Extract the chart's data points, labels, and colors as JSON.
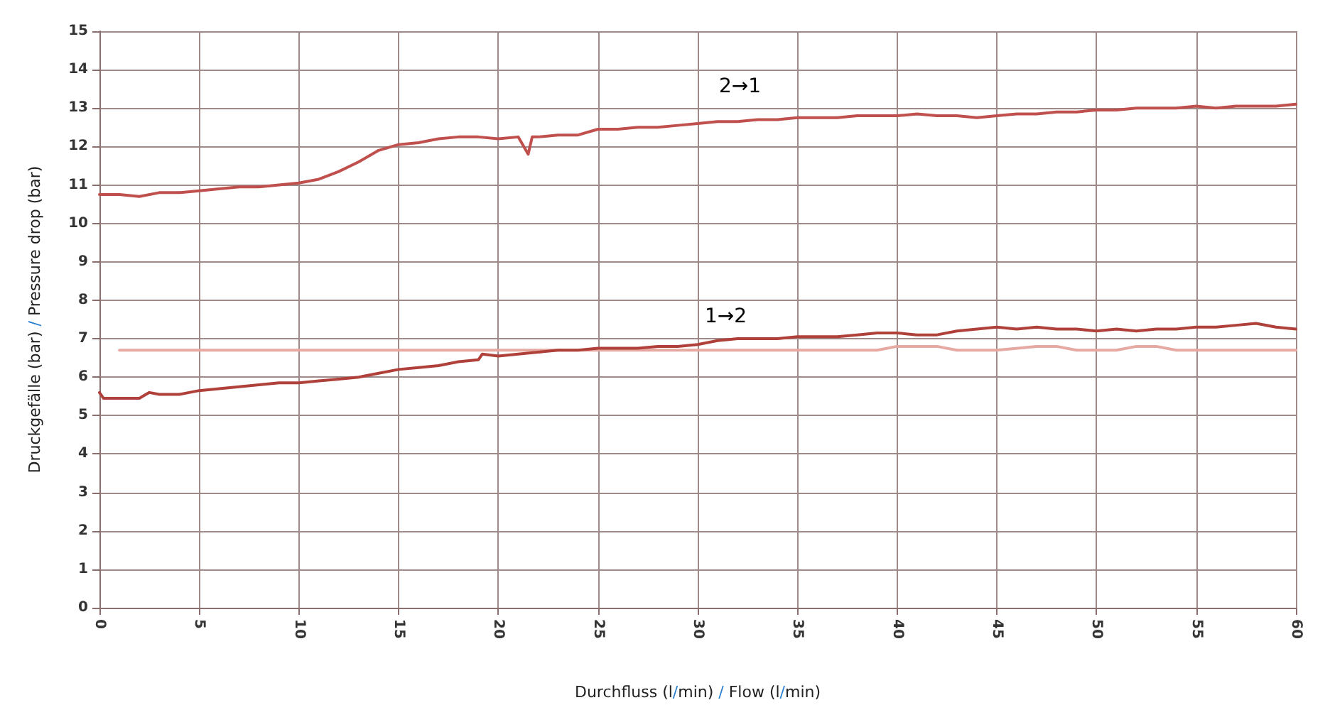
{
  "chart_data": {
    "type": "line",
    "xlabel": "Durchfluss (l/min) / Flow (l/min)",
    "ylabel": "Druckgefälle (bar) / Pressure drop (bar)",
    "xlim": [
      0,
      60
    ],
    "xticks": [
      0,
      5,
      10,
      15,
      20,
      25,
      30,
      35,
      40,
      45,
      50,
      55,
      60
    ],
    "ylim": [
      0,
      15
    ],
    "yticks": [
      0,
      1,
      2,
      3,
      4,
      5,
      6,
      7,
      8,
      9,
      10,
      11,
      12,
      13,
      14,
      15
    ],
    "grid": true,
    "marker": "none",
    "line_style": "solid",
    "annotations": [
      "2→1",
      "1→2"
    ],
    "series": [
      {
        "color": "#e6a9a2",
        "x": [
          1,
          10,
          20,
          30,
          39,
          40,
          42,
          43,
          45,
          47,
          48,
          49,
          51,
          52,
          53,
          54,
          60
        ],
        "values": [
          6.7,
          6.7,
          6.7,
          6.7,
          6.7,
          6.8,
          6.8,
          6.7,
          6.7,
          6.8,
          6.8,
          6.7,
          6.7,
          6.8,
          6.8,
          6.7,
          6.7
        ]
      },
      {
        "color": "#c0504d",
        "x": [
          0,
          1,
          2,
          3,
          4,
          5,
          6,
          7,
          8,
          9,
          10,
          11,
          12,
          13,
          14,
          15,
          16,
          17,
          18,
          19,
          20,
          21,
          21.5,
          21.7,
          22,
          23,
          24,
          25,
          26,
          27,
          28,
          29,
          30,
          31,
          32,
          33,
          34,
          35,
          36,
          37,
          38,
          39,
          40,
          41,
          42,
          43,
          44,
          45,
          46,
          47,
          48,
          49,
          50,
          51,
          52,
          53,
          54,
          55,
          56,
          57,
          58,
          59,
          60
        ],
        "values": [
          10.75,
          10.75,
          10.7,
          10.8,
          10.8,
          10.85,
          10.9,
          10.95,
          10.95,
          11.0,
          11.05,
          11.15,
          11.35,
          11.6,
          11.9,
          12.05,
          12.1,
          12.2,
          12.25,
          12.25,
          12.2,
          12.25,
          11.8,
          12.25,
          12.25,
          12.3,
          12.3,
          12.45,
          12.45,
          12.5,
          12.5,
          12.55,
          12.6,
          12.65,
          12.65,
          12.7,
          12.7,
          12.75,
          12.75,
          12.75,
          12.8,
          12.8,
          12.8,
          12.85,
          12.8,
          12.8,
          12.75,
          12.8,
          12.85,
          12.85,
          12.9,
          12.9,
          12.95,
          12.95,
          13.0,
          13.0,
          13.0,
          13.05,
          13.0,
          13.05,
          13.05,
          13.05,
          13.1
        ]
      },
      {
        "color": "#b0403a",
        "x": [
          0,
          0.2,
          1,
          2,
          2.5,
          3,
          4,
          5,
          6,
          7,
          8,
          9,
          10,
          11,
          12,
          13,
          14,
          15,
          16,
          17,
          18,
          19,
          19.2,
          20,
          21,
          22,
          23,
          24,
          25,
          26,
          27,
          28,
          29,
          30,
          31,
          32,
          33,
          34,
          35,
          36,
          37,
          38,
          39,
          40,
          41,
          42,
          43,
          44,
          45,
          46,
          47,
          48,
          49,
          50,
          51,
          52,
          53,
          54,
          55,
          56,
          57,
          58,
          59,
          60
        ],
        "values": [
          5.6,
          5.45,
          5.45,
          5.45,
          5.6,
          5.55,
          5.55,
          5.65,
          5.7,
          5.75,
          5.8,
          5.85,
          5.85,
          5.9,
          5.95,
          6.0,
          6.1,
          6.2,
          6.25,
          6.3,
          6.4,
          6.45,
          6.6,
          6.55,
          6.6,
          6.65,
          6.7,
          6.7,
          6.75,
          6.75,
          6.75,
          6.8,
          6.8,
          6.85,
          6.95,
          7.0,
          7.0,
          7.0,
          7.05,
          7.05,
          7.05,
          7.1,
          7.15,
          7.15,
          7.1,
          7.1,
          7.2,
          7.25,
          7.3,
          7.25,
          7.3,
          7.25,
          7.25,
          7.2,
          7.25,
          7.2,
          7.25,
          7.25,
          7.3,
          7.3,
          7.35,
          7.4,
          7.3,
          7.25
        ]
      }
    ]
  }
}
